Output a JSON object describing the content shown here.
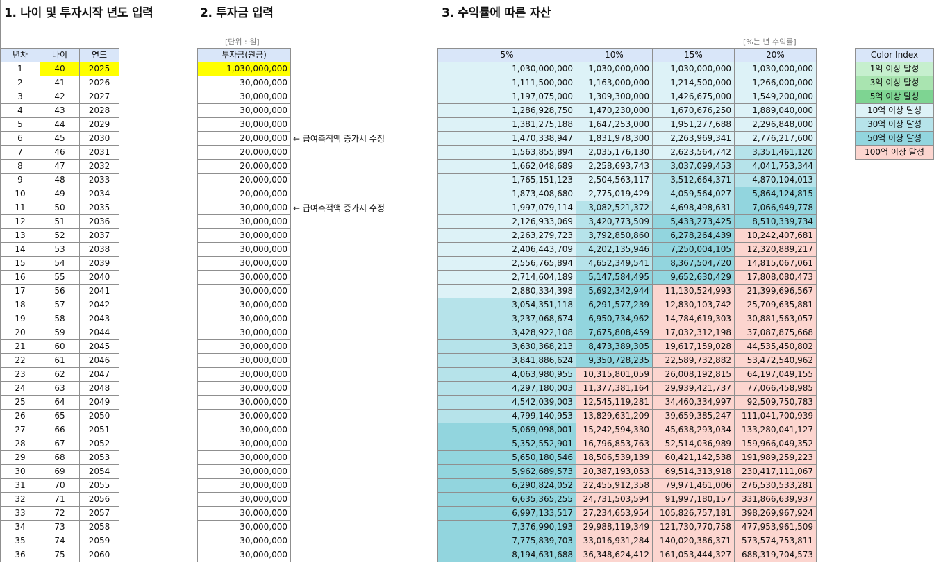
{
  "headings": {
    "h1": "1. 나이 및 투자시작 년도 입력",
    "h2": "2. 투자금 입력",
    "h3": "3. 수익률에 따른 자산"
  },
  "notes": {
    "unit": "[단위 : 원]",
    "rate": "[%는 년 수익률]"
  },
  "age_table": {
    "headers": [
      "년차",
      "나이",
      "연도"
    ],
    "rows": [
      [
        "1",
        "40",
        "2025"
      ],
      [
        "2",
        "41",
        "2026"
      ],
      [
        "3",
        "42",
        "2027"
      ],
      [
        "4",
        "43",
        "2028"
      ],
      [
        "5",
        "44",
        "2029"
      ],
      [
        "6",
        "45",
        "2030"
      ],
      [
        "7",
        "46",
        "2031"
      ],
      [
        "8",
        "47",
        "2032"
      ],
      [
        "9",
        "48",
        "2033"
      ],
      [
        "10",
        "49",
        "2034"
      ],
      [
        "11",
        "50",
        "2035"
      ],
      [
        "12",
        "51",
        "2036"
      ],
      [
        "13",
        "52",
        "2037"
      ],
      [
        "14",
        "53",
        "2038"
      ],
      [
        "15",
        "54",
        "2039"
      ],
      [
        "16",
        "55",
        "2040"
      ],
      [
        "17",
        "56",
        "2041"
      ],
      [
        "18",
        "57",
        "2042"
      ],
      [
        "19",
        "58",
        "2043"
      ],
      [
        "20",
        "59",
        "2044"
      ],
      [
        "21",
        "60",
        "2045"
      ],
      [
        "22",
        "61",
        "2046"
      ],
      [
        "23",
        "62",
        "2047"
      ],
      [
        "24",
        "63",
        "2048"
      ],
      [
        "25",
        "64",
        "2049"
      ],
      [
        "26",
        "65",
        "2050"
      ],
      [
        "27",
        "66",
        "2051"
      ],
      [
        "28",
        "67",
        "2052"
      ],
      [
        "29",
        "68",
        "2053"
      ],
      [
        "30",
        "69",
        "2054"
      ],
      [
        "31",
        "70",
        "2055"
      ],
      [
        "32",
        "71",
        "2056"
      ],
      [
        "33",
        "72",
        "2057"
      ],
      [
        "34",
        "73",
        "2058"
      ],
      [
        "35",
        "74",
        "2059"
      ],
      [
        "36",
        "75",
        "2060"
      ]
    ]
  },
  "invest_table": {
    "header": "투자금(원금)",
    "values": [
      "1,030,000,000",
      "30,000,000",
      "30,000,000",
      "30,000,000",
      "30,000,000",
      "20,000,000",
      "20,000,000",
      "20,000,000",
      "20,000,000",
      "20,000,000",
      "30,000,000",
      "30,000,000",
      "30,000,000",
      "30,000,000",
      "30,000,000",
      "30,000,000",
      "30,000,000",
      "30,000,000",
      "30,000,000",
      "30,000,000",
      "30,000,000",
      "30,000,000",
      "30,000,000",
      "30,000,000",
      "30,000,000",
      "30,000,000",
      "30,000,000",
      "30,000,000",
      "30,000,000",
      "30,000,000",
      "30,000,000",
      "30,000,000",
      "30,000,000",
      "30,000,000",
      "30,000,000",
      "30,000,000"
    ]
  },
  "annotations": {
    "a1": "← 급여축적액 증가시 수정",
    "a2": "← 급여축적액 증가시 수정"
  },
  "asset_table": {
    "headers": [
      "5%",
      "10%",
      "15%",
      "20%"
    ],
    "rows": [
      [
        "1,030,000,000",
        "1,030,000,000",
        "1,030,000,000",
        "1,030,000,000"
      ],
      [
        "1,111,500,000",
        "1,163,000,000",
        "1,214,500,000",
        "1,266,000,000"
      ],
      [
        "1,197,075,000",
        "1,309,300,000",
        "1,426,675,000",
        "1,549,200,000"
      ],
      [
        "1,286,928,750",
        "1,470,230,000",
        "1,670,676,250",
        "1,889,040,000"
      ],
      [
        "1,381,275,188",
        "1,647,253,000",
        "1,951,277,688",
        "2,296,848,000"
      ],
      [
        "1,470,338,947",
        "1,831,978,300",
        "2,263,969,341",
        "2,776,217,600"
      ],
      [
        "1,563,855,894",
        "2,035,176,130",
        "2,623,564,742",
        "3,351,461,120"
      ],
      [
        "1,662,048,689",
        "2,258,693,743",
        "3,037,099,453",
        "4,041,753,344"
      ],
      [
        "1,765,151,123",
        "2,504,563,117",
        "3,512,664,371",
        "4,870,104,013"
      ],
      [
        "1,873,408,680",
        "2,775,019,429",
        "4,059,564,027",
        "5,864,124,815"
      ],
      [
        "1,997,079,114",
        "3,082,521,372",
        "4,698,498,631",
        "7,066,949,778"
      ],
      [
        "2,126,933,069",
        "3,420,773,509",
        "5,433,273,425",
        "8,510,339,734"
      ],
      [
        "2,263,279,723",
        "3,792,850,860",
        "6,278,264,439",
        "10,242,407,681"
      ],
      [
        "2,406,443,709",
        "4,202,135,946",
        "7,250,004,105",
        "12,320,889,217"
      ],
      [
        "2,556,765,894",
        "4,652,349,541",
        "8,367,504,720",
        "14,815,067,061"
      ],
      [
        "2,714,604,189",
        "5,147,584,495",
        "9,652,630,429",
        "17,808,080,473"
      ],
      [
        "2,880,334,398",
        "5,692,342,944",
        "11,130,524,993",
        "21,399,696,567"
      ],
      [
        "3,054,351,118",
        "6,291,577,239",
        "12,830,103,742",
        "25,709,635,881"
      ],
      [
        "3,237,068,674",
        "6,950,734,962",
        "14,784,619,303",
        "30,881,563,057"
      ],
      [
        "3,428,922,108",
        "7,675,808,459",
        "17,032,312,198",
        "37,087,875,668"
      ],
      [
        "3,630,368,213",
        "8,473,389,305",
        "19,617,159,028",
        "44,535,450,802"
      ],
      [
        "3,841,886,624",
        "9,350,728,235",
        "22,589,732,882",
        "53,472,540,962"
      ],
      [
        "4,063,980,955",
        "10,315,801,059",
        "26,008,192,815",
        "64,197,049,155"
      ],
      [
        "4,297,180,003",
        "11,377,381,164",
        "29,939,421,737",
        "77,066,458,985"
      ],
      [
        "4,542,039,003",
        "12,545,119,281",
        "34,460,334,997",
        "92,509,750,783"
      ],
      [
        "4,799,140,953",
        "13,829,631,209",
        "39,659,385,247",
        "111,041,700,939"
      ],
      [
        "5,069,098,001",
        "15,242,594,330",
        "45,638,293,034",
        "133,280,041,127"
      ],
      [
        "5,352,552,901",
        "16,796,853,763",
        "52,514,036,989",
        "159,966,049,352"
      ],
      [
        "5,650,180,546",
        "18,506,539,139",
        "60,421,142,538",
        "191,989,259,223"
      ],
      [
        "5,962,689,573",
        "20,387,193,053",
        "69,514,313,918",
        "230,417,111,067"
      ],
      [
        "6,290,824,052",
        "22,455,912,358",
        "79,971,461,006",
        "276,530,533,281"
      ],
      [
        "6,635,365,255",
        "24,731,503,594",
        "91,997,180,157",
        "331,866,639,937"
      ],
      [
        "6,997,133,517",
        "27,234,653,954",
        "105,826,757,181",
        "398,269,967,924"
      ],
      [
        "7,376,990,193",
        "29,988,119,349",
        "121,730,770,758",
        "477,953,961,509"
      ],
      [
        "7,775,839,703",
        "33,016,931,284",
        "140,020,386,371",
        "573,574,753,811"
      ],
      [
        "8,194,631,688",
        "36,348,624,412",
        "161,053,444,327",
        "688,319,704,573"
      ]
    ]
  },
  "legend": {
    "header": "Color Index",
    "items": [
      {
        "label": "1억 이상 달성",
        "color": "#c6efce"
      },
      {
        "label": "3억 이상 달성",
        "color": "#a9e4b0"
      },
      {
        "label": "5억 이상 달성",
        "color": "#7ed492"
      },
      {
        "label": "10억 이상 달성",
        "color": "#ddf2f7"
      },
      {
        "label": "30억 이상 달성",
        "color": "#b6e3ea"
      },
      {
        "label": "50억 이상 달성",
        "color": "#92d5de"
      },
      {
        "label": "100억 이상 달성",
        "color": "#fcd5cf"
      }
    ]
  },
  "colors": {
    "header_bg": "#d9e6f9",
    "input_highlight": "#ffff00"
  }
}
